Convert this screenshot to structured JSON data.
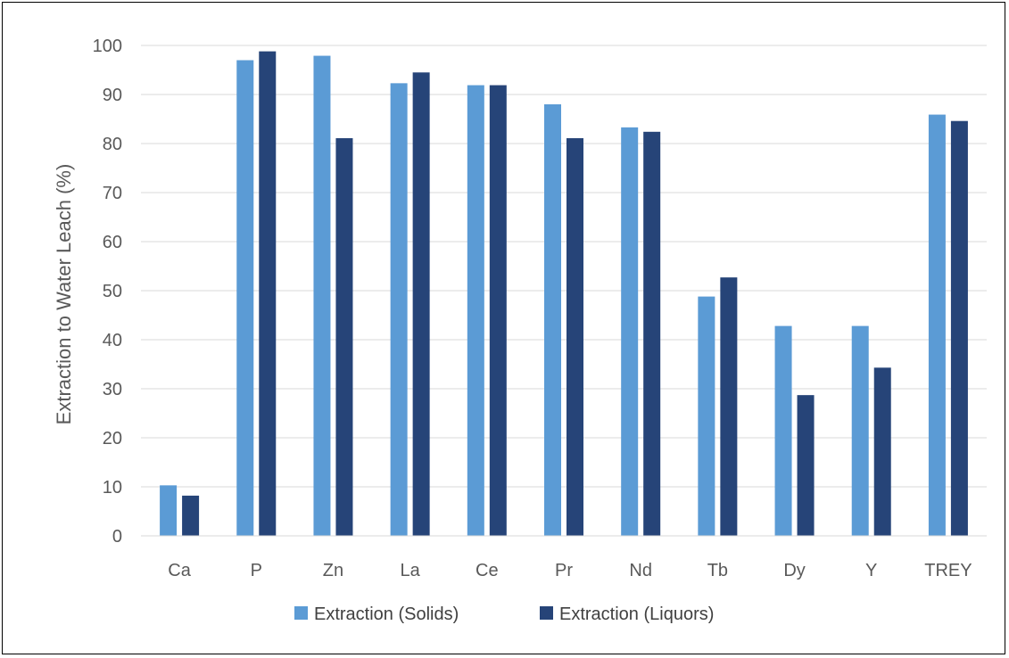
{
  "chart_data": {
    "type": "bar",
    "title": "",
    "xlabel": "",
    "ylabel": "Extraction to Water Leach (%)",
    "ylim": [
      0,
      100
    ],
    "yticks": [
      0,
      10,
      20,
      30,
      40,
      50,
      60,
      70,
      80,
      90,
      100
    ],
    "grid": true,
    "legend_position": "bottom",
    "categories": [
      "Ca",
      "P",
      "Zn",
      "La",
      "Ce",
      "Pr",
      "Nd",
      "Tb",
      "Dy",
      "Y",
      "TREY"
    ],
    "series": [
      {
        "name": "Extraction (Solids)",
        "color": "#5B9BD5",
        "values": [
          10.3,
          97.0,
          97.9,
          92.3,
          91.9,
          88.0,
          83.3,
          48.8,
          42.8,
          42.8,
          85.9
        ]
      },
      {
        "name": "Extraction (Liquors)",
        "color": "#264478",
        "values": [
          8.2,
          98.8,
          81.1,
          94.5,
          91.9,
          81.1,
          82.4,
          52.7,
          28.7,
          34.3,
          84.6
        ]
      }
    ]
  }
}
